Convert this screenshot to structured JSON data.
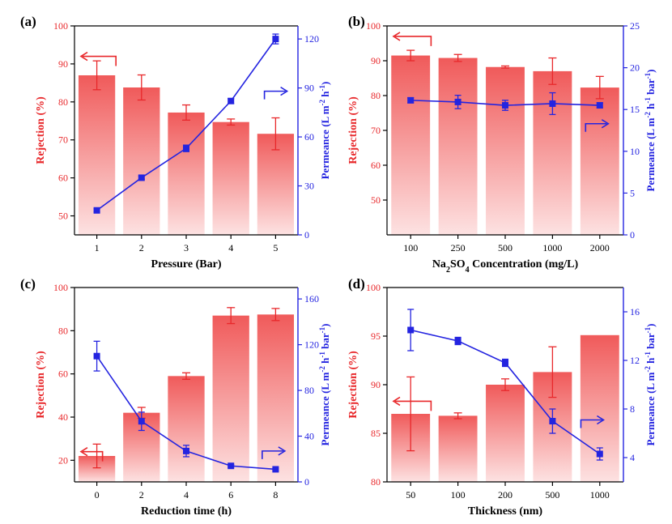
{
  "colors": {
    "rejection": "#e8282b",
    "permeance": "#2424e0",
    "bar_top": "#f05a5a",
    "bar_bottom": "#fde2e2"
  },
  "chart_data": [
    {
      "panel_label": "(a)",
      "type": "bar",
      "xlabel": "Pressure (Bar)",
      "xlabel_sub": "",
      "xlabel_after": "",
      "ylabel": "Rejection (%)",
      "y2label_html": "Permeance (L m<tspan baseline-shift=\"super\" font-size=\"9\">-2</tspan> h<tspan baseline-shift=\"super\" font-size=\"9\">-1</tspan>)",
      "categories": [
        "1",
        "2",
        "3",
        "4",
        "5"
      ],
      "ylim": [
        45,
        100
      ],
      "yticks": [
        50,
        60,
        70,
        80,
        90,
        100
      ],
      "y2lim": [
        0,
        128
      ],
      "y2ticks": [
        0,
        30,
        60,
        90,
        120
      ],
      "series": [
        {
          "name": "Rejection",
          "axis": "left",
          "kind": "bar",
          "values": [
            87,
            83.8,
            77.2,
            74.7,
            71.6
          ],
          "errors": [
            3.8,
            3.3,
            2.0,
            0.8,
            4.2
          ]
        },
        {
          "name": "Permeance",
          "axis": "right",
          "kind": "line",
          "values": [
            15,
            35,
            53,
            82,
            120
          ],
          "errors": [
            1,
            1,
            2,
            1.5,
            3
          ]
        }
      ],
      "arrows": {
        "left": [
          1,
          92
        ],
        "right": [
          4.25,
          88
        ]
      }
    },
    {
      "panel_label": "(b)",
      "type": "bar",
      "xlabel": "Na",
      "xlabel_sub": "2",
      "xlabel_mid": "SO",
      "xlabel_sub2": "4",
      "xlabel_after": " Concentration (mg/L)",
      "ylabel": "Rejection (%)",
      "y2label_html": "Permeance (L m<tspan baseline-shift=\"super\" font-size=\"9\">-2</tspan> h<tspan baseline-shift=\"super\" font-size=\"9\">-1</tspan> bar<tspan baseline-shift=\"super\" font-size=\"9\">-1</tspan>)",
      "categories": [
        "100",
        "250",
        "500",
        "1000",
        "2000"
      ],
      "ylim": [
        40,
        100
      ],
      "yticks": [
        50,
        60,
        70,
        80,
        90,
        100
      ],
      "y2lim": [
        0,
        25
      ],
      "y2ticks": [
        0,
        5,
        10,
        15,
        20,
        25
      ],
      "series": [
        {
          "name": "Rejection",
          "axis": "left",
          "kind": "bar",
          "values": [
            91.5,
            90.8,
            88.2,
            87,
            82.3
          ],
          "errors": [
            1.5,
            1.0,
            0.3,
            3.8,
            3.2
          ]
        },
        {
          "name": "Permeance",
          "axis": "right",
          "kind": "line",
          "values": [
            16.1,
            15.9,
            15.5,
            15.7,
            15.5
          ],
          "errors": [
            0.3,
            0.8,
            0.6,
            1.3,
            0.3
          ]
        }
      ],
      "arrows": {
        "left": [
          1,
          97
        ],
        "right": [
          4.2,
          13.3
        ]
      }
    },
    {
      "panel_label": "(c)",
      "type": "bar",
      "xlabel": "Reduction time (h)",
      "xlabel_sub": "",
      "xlabel_after": "",
      "ylabel": "Rejection (%)",
      "y2label_html": "Permeance (L m<tspan baseline-shift=\"super\" font-size=\"9\">-2</tspan> h<tspan baseline-shift=\"super\" font-size=\"9\">-1</tspan> bar<tspan baseline-shift=\"super\" font-size=\"9\">-1</tspan>)",
      "categories": [
        "0",
        "2",
        "4",
        "6",
        "8"
      ],
      "ylim": [
        10,
        100
      ],
      "yticks": [
        20,
        40,
        60,
        80,
        100
      ],
      "y2lim": [
        0,
        170
      ],
      "y2ticks": [
        0,
        40,
        80,
        120,
        160
      ],
      "series": [
        {
          "name": "Rejection",
          "axis": "left",
          "kind": "bar",
          "values": [
            22,
            42,
            59,
            87,
            87.5
          ],
          "errors": [
            5.5,
            2.5,
            1.5,
            3.7,
            2.8
          ]
        },
        {
          "name": "Permeance",
          "axis": "right",
          "kind": "line",
          "values": [
            110,
            53,
            27,
            14,
            11
          ],
          "errors": [
            13,
            8,
            5,
            1,
            1
          ]
        }
      ],
      "arrows": {
        "left": [
          0.7,
          24
        ],
        "right": [
          4.2,
          27
        ]
      }
    },
    {
      "panel_label": "(d)",
      "type": "bar",
      "xlabel": "Thickness (nm)",
      "xlabel_sub": "",
      "xlabel_after": "",
      "ylabel": "Rejection (%)",
      "y2label_html": "Permeance (L m<tspan baseline-shift=\"super\" font-size=\"9\">-2</tspan> h<tspan baseline-shift=\"super\" font-size=\"9\">-1</tspan> bar<tspan baseline-shift=\"super\" font-size=\"9\">-1</tspan>)",
      "categories": [
        "50",
        "100",
        "200",
        "500",
        "1000"
      ],
      "ylim": [
        80,
        100
      ],
      "yticks": [
        80,
        85,
        90,
        95,
        100
      ],
      "y2lim": [
        2,
        18
      ],
      "y2ticks": [
        4,
        8,
        12,
        16
      ],
      "series": [
        {
          "name": "Rejection",
          "axis": "left",
          "kind": "bar",
          "values": [
            87,
            86.8,
            90,
            91.3,
            95.1
          ],
          "errors": [
            3.8,
            0.3,
            0.6,
            2.6,
            0
          ]
        },
        {
          "name": "Permeance",
          "axis": "right",
          "kind": "line",
          "values": [
            14.5,
            13.6,
            11.8,
            7,
            4.3
          ],
          "errors": [
            1.7,
            0.3,
            0.3,
            1,
            0.5
          ]
        }
      ],
      "arrows": {
        "left": [
          1,
          88.3
        ],
        "right": [
          4.1,
          7.1
        ]
      }
    }
  ]
}
